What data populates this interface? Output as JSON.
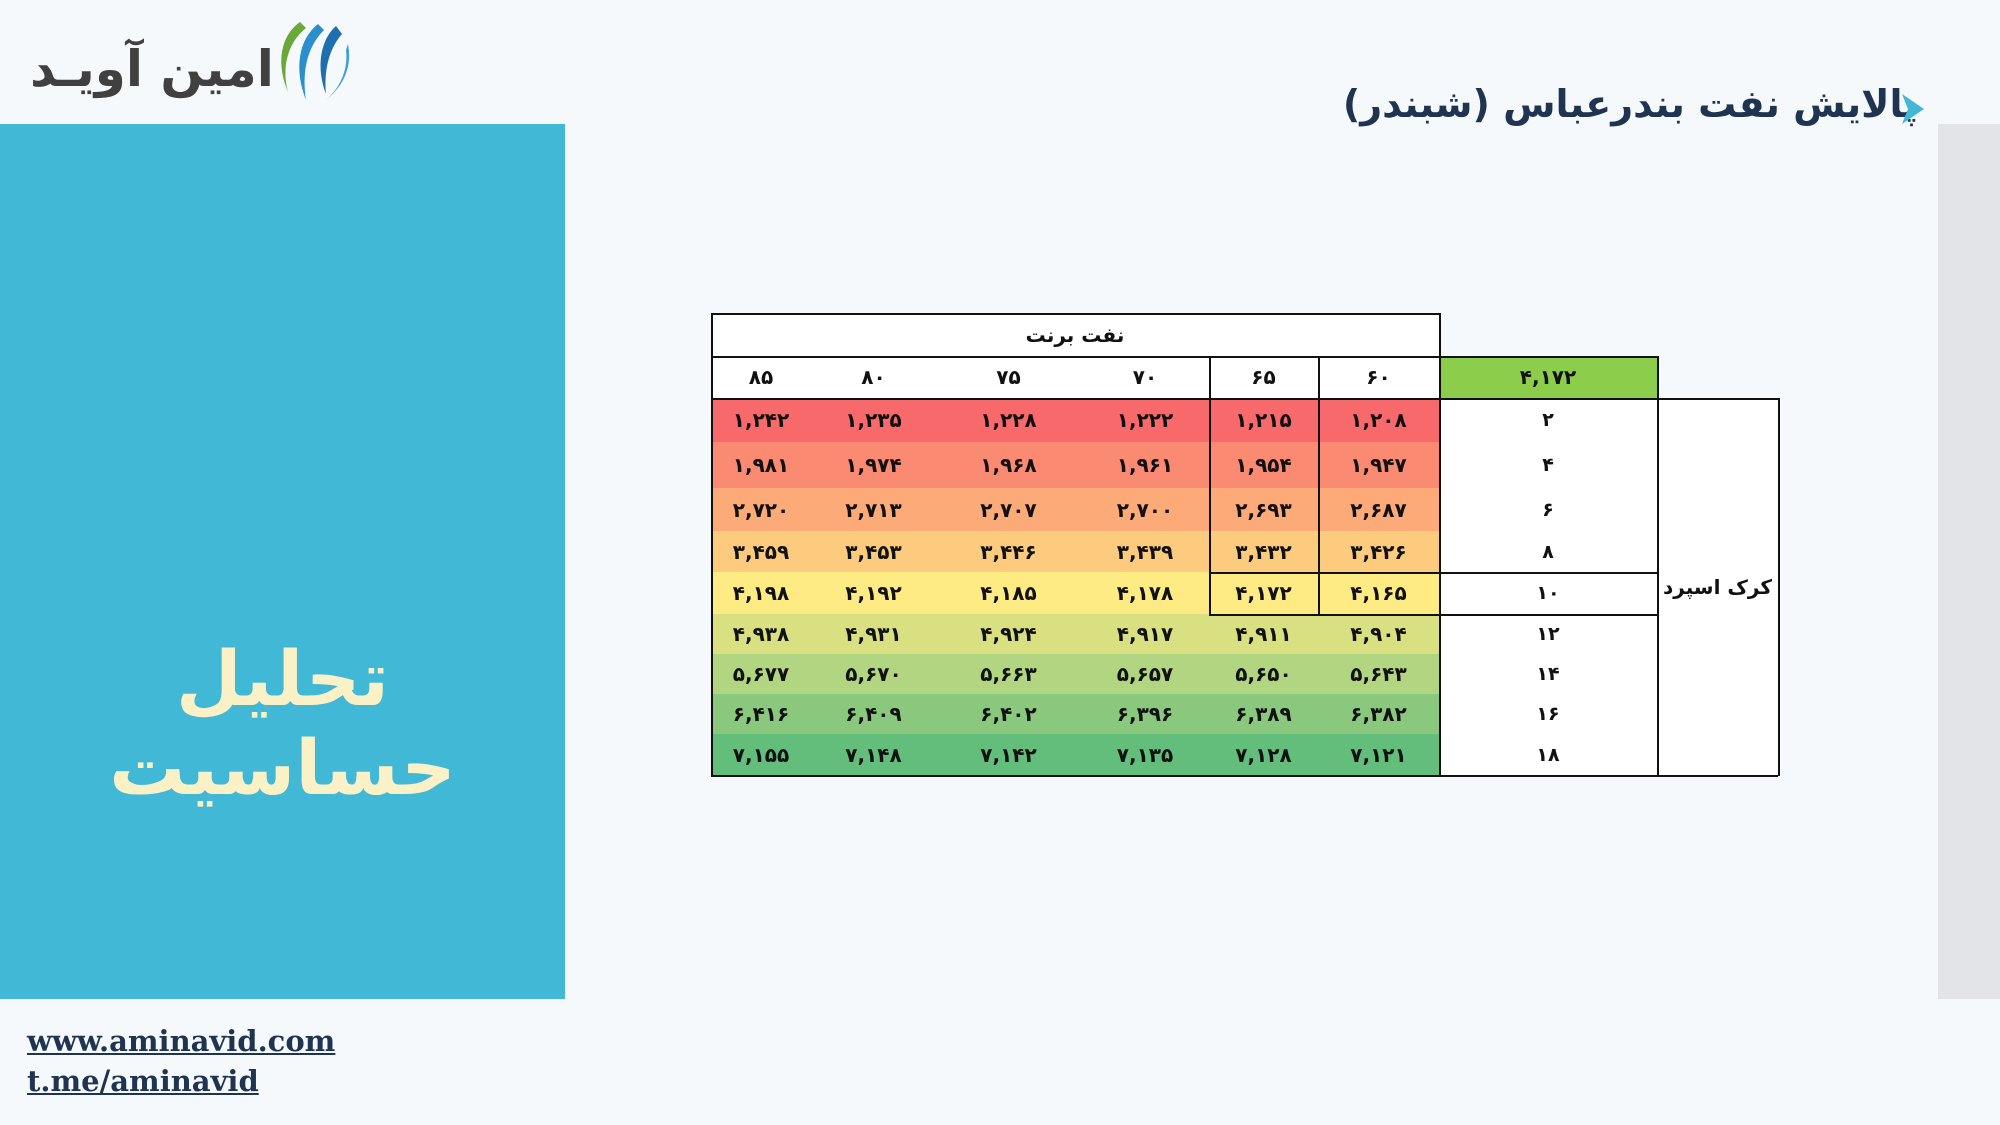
{
  "logo": {
    "text": "امین آویـد",
    "mark": "aminavid-logo-mark"
  },
  "page_title": "پالایش نفت بندرعباس (شبندر)",
  "panel_title": "تحلیل حساسیت",
  "footer": {
    "website": "www.aminavid.com",
    "telegram": "t.me/aminavid"
  },
  "colors": {
    "panel": "#41b8d6",
    "panel_text": "#fbf1c6",
    "corner_cell": "#8ccd4c",
    "heat_low": "#f8696b",
    "heat_mid": "#ffeb84",
    "heat_high": "#63be7b"
  },
  "table": {
    "column_group_label": "نفت برنت",
    "row_group_label": "کرک اسپرد",
    "base_value": "۴,۱۷۲",
    "columns": [
      "۶۰",
      "۶۵",
      "۷۰",
      "۷۵",
      "۸۰",
      "۸۵"
    ],
    "rows": [
      {
        "label": "۲",
        "values": [
          "۱,۲۰۸",
          "۱,۲۱۵",
          "۱,۲۲۲",
          "۱,۲۲۸",
          "۱,۲۳۵",
          "۱,۲۴۲"
        ]
      },
      {
        "label": "۴",
        "values": [
          "۱,۹۴۷",
          "۱,۹۵۴",
          "۱,۹۶۱",
          "۱,۹۶۸",
          "۱,۹۷۴",
          "۱,۹۸۱"
        ]
      },
      {
        "label": "۶",
        "values": [
          "۲,۶۸۷",
          "۲,۶۹۳",
          "۲,۷۰۰",
          "۲,۷۰۷",
          "۲,۷۱۳",
          "۲,۷۲۰"
        ]
      },
      {
        "label": "۸",
        "values": [
          "۳,۴۲۶",
          "۳,۴۳۲",
          "۳,۴۳۹",
          "۳,۴۴۶",
          "۳,۴۵۳",
          "۳,۴۵۹"
        ]
      },
      {
        "label": "۱۰",
        "values": [
          "۴,۱۶۵",
          "۴,۱۷۲",
          "۴,۱۷۸",
          "۴,۱۸۵",
          "۴,۱۹۲",
          "۴,۱۹۸"
        ]
      },
      {
        "label": "۱۲",
        "values": [
          "۴,۹۰۴",
          "۴,۹۱۱",
          "۴,۹۱۷",
          "۴,۹۲۴",
          "۴,۹۳۱",
          "۴,۹۳۸"
        ]
      },
      {
        "label": "۱۴",
        "values": [
          "۵,۶۴۳",
          "۵,۶۵۰",
          "۵,۶۵۷",
          "۵,۶۶۳",
          "۵,۶۷۰",
          "۵,۶۷۷"
        ]
      },
      {
        "label": "۱۶",
        "values": [
          "۶,۳۸۲",
          "۶,۳۸۹",
          "۶,۳۹۶",
          "۶,۴۰۲",
          "۶,۴۰۹",
          "۶,۴۱۶"
        ]
      },
      {
        "label": "۱۸",
        "values": [
          "۷,۱۲۱",
          "۷,۱۲۸",
          "۷,۱۳۵",
          "۷,۱۴۲",
          "۷,۱۴۸",
          "۷,۱۵۵"
        ]
      }
    ]
  }
}
